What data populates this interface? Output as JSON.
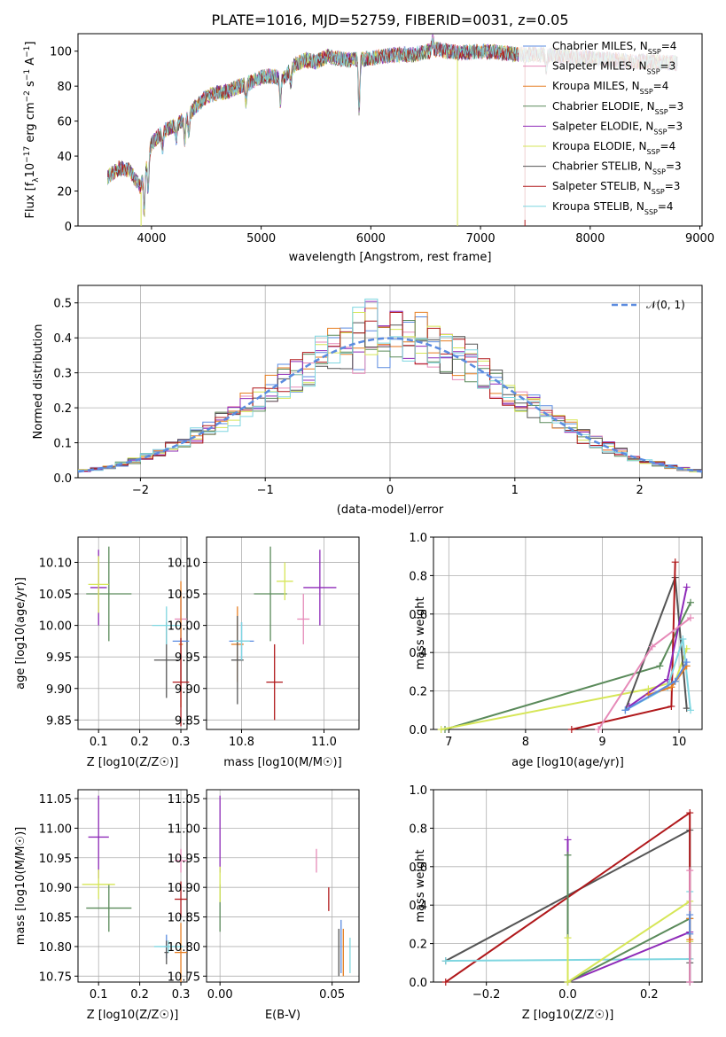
{
  "colors": {
    "Chabrier MILES": "#5b8be0",
    "Salpeter MILES": "#e68ab8",
    "Kroupa MILES": "#e67e22",
    "Chabrier ELODIE": "#5a8a5a",
    "Salpeter ELODIE": "#8e2ab8",
    "Kroupa ELODIE": "#d6e657",
    "Chabrier STELIB": "#555555",
    "Salpeter STELIB": "#b0181b",
    "Kroupa STELIB": "#7fd6e0"
  },
  "chart_data": [
    {
      "id": "spectrum",
      "type": "line",
      "title": "PLATE=1016, MJD=52759, FIBERID=0031, z=0.05",
      "xlabel": "wavelength [Angstrom, rest frame]",
      "ylabel": "Flux [f_λ10^-17 erg cm^-2 s^-1 A^-1]",
      "xlim": [
        3330,
        9020
      ],
      "ylim": [
        0,
        110
      ],
      "xticks": [
        "4000",
        "5000",
        "6000",
        "7000",
        "8000",
        "9000"
      ],
      "yticks": [
        "0",
        "20",
        "40",
        "60",
        "80",
        "100"
      ],
      "grid": false,
      "legend_position": "top-right",
      "series": [
        {
          "name": "Chabrier MILES, N_SSP=4",
          "key": "Chabrier MILES"
        },
        {
          "name": "Salpeter MILES, N_SSP=3",
          "key": "Salpeter MILES"
        },
        {
          "name": "Kroupa MILES, N_SSP=4",
          "key": "Kroupa MILES"
        },
        {
          "name": "Chabrier ELODIE, N_SSP=3",
          "key": "Chabrier ELODIE"
        },
        {
          "name": "Salpeter ELODIE, N_SSP=3",
          "key": "Salpeter ELODIE"
        },
        {
          "name": "Kroupa ELODIE, N_SSP=4",
          "key": "Kroupa ELODIE"
        },
        {
          "name": "Chabrier STELIB, N_SSP=3",
          "key": "Chabrier STELIB"
        },
        {
          "name": "Salpeter STELIB, N_SSP=3",
          "key": "Salpeter STELIB"
        },
        {
          "name": "Kroupa STELIB, N_SSP=4",
          "key": "Kroupa STELIB"
        }
      ],
      "continuum": {
        "x": [
          3600,
          3700,
          3800,
          3900,
          4000,
          4100,
          4200,
          4300,
          4400,
          4500,
          4600,
          4700,
          4800,
          4900,
          5000,
          5100,
          5200,
          5300,
          5400,
          5500,
          5600,
          5800,
          6000,
          6200,
          6400,
          6600,
          6800,
          7000,
          7200,
          7400,
          7600,
          7800,
          8000,
          8200,
          8400,
          8600,
          8800
        ],
        "y": [
          28,
          33,
          32,
          22,
          47,
          54,
          57,
          61,
          68,
          74,
          76,
          77,
          80,
          82,
          85,
          86,
          84,
          92,
          95,
          94,
          97,
          95,
          96,
          98,
          98,
          101,
          99,
          100,
          99,
          98,
          98,
          97,
          96,
          95,
          94,
          94,
          93
        ]
      }
    },
    {
      "id": "residuals",
      "type": "histogram",
      "xlabel": "(data-model)/error",
      "ylabel": "Normed distribution",
      "xlim": [
        -2.5,
        2.5
      ],
      "ylim": [
        0,
        0.55
      ],
      "xticks": [
        "−2",
        "−1",
        "0",
        "1",
        "2"
      ],
      "yticks": [
        "0.0",
        "0.1",
        "0.2",
        "0.3",
        "0.4",
        "0.5"
      ],
      "grid": true,
      "legend_position": "top-right",
      "reference_curve": {
        "name": "𝒩(0, 1)",
        "mean": 0,
        "sigma": 1
      }
    },
    {
      "id": "age-vs-Z",
      "type": "scatter",
      "xlabel": "Z [log10(Z/Z☉)]",
      "ylabel": "age  [log10(age/yr)]",
      "xlim": [
        0.05,
        0.315
      ],
      "ylim": [
        9.835,
        10.14
      ],
      "xticks": [
        "0.1",
        "0.2",
        "0.3"
      ],
      "yticks": [
        "9.85",
        "9.90",
        "9.95",
        "10.00",
        "10.05",
        "10.10"
      ],
      "grid": true,
      "points": [
        {
          "key": "Chabrier MILES",
          "x": 0.3,
          "y": 9.975,
          "xerr": 0.02,
          "yerr": 0.08
        },
        {
          "key": "Salpeter MILES",
          "x": 0.3,
          "y": 10.01,
          "xerr": 0.015,
          "yerr": 0.03
        },
        {
          "key": "Kroupa MILES",
          "x": 0.3,
          "y": 9.97,
          "xerr": 0.005,
          "yerr": 0.1
        },
        {
          "key": "Chabrier ELODIE",
          "x": 0.125,
          "y": 10.05,
          "xerr": 0.055,
          "yerr": 0.075
        },
        {
          "key": "Salpeter ELODIE",
          "x": 0.1,
          "y": 10.06,
          "xerr": 0.02,
          "yerr": 0.06
        },
        {
          "key": "Kroupa ELODIE",
          "x": 0.1,
          "y": 10.065,
          "xerr": 0.025,
          "yerr": 0.045
        },
        {
          "key": "Chabrier STELIB",
          "x": 0.265,
          "y": 9.945,
          "xerr": 0.03,
          "yerr": 0.06
        },
        {
          "key": "Salpeter STELIB",
          "x": 0.3,
          "y": 9.91,
          "xerr": 0.02,
          "yerr": 0.07
        },
        {
          "key": "Kroupa STELIB",
          "x": 0.265,
          "y": 10.0,
          "xerr": 0.035,
          "yerr": 0.03
        }
      ]
    },
    {
      "id": "age-vs-mass",
      "type": "scatter",
      "xlabel": "mass [log10(M/M☉)]",
      "ylabel": "",
      "xlim": [
        10.715,
        11.085
      ],
      "ylim": [
        9.835,
        10.14
      ],
      "xticks": [
        "10.8",
        "11.0"
      ],
      "yticks": [
        "9.85",
        "9.90",
        "9.95",
        "10.00",
        "10.05",
        "10.10"
      ],
      "grid": true,
      "points": [
        {
          "key": "Chabrier MILES",
          "x": 10.8,
          "y": 9.975,
          "xerr": 0.03,
          "yerr": 0.03
        },
        {
          "key": "Salpeter MILES",
          "x": 10.95,
          "y": 10.01,
          "xerr": 0.015,
          "yerr": 0.04
        },
        {
          "key": "Kroupa MILES",
          "x": 10.79,
          "y": 9.97,
          "xerr": 0.015,
          "yerr": 0.06
        },
        {
          "key": "Chabrier ELODIE",
          "x": 10.87,
          "y": 10.05,
          "xerr": 0.04,
          "yerr": 0.075
        },
        {
          "key": "Salpeter ELODIE",
          "x": 10.99,
          "y": 10.06,
          "xerr": 0.04,
          "yerr": 0.06
        },
        {
          "key": "Kroupa ELODIE",
          "x": 10.905,
          "y": 10.07,
          "xerr": 0.02,
          "yerr": 0.03
        },
        {
          "key": "Chabrier STELIB",
          "x": 10.79,
          "y": 9.945,
          "xerr": 0.015,
          "yerr": 0.07
        },
        {
          "key": "Salpeter STELIB",
          "x": 10.88,
          "y": 9.91,
          "xerr": 0.02,
          "yerr": 0.06
        },
        {
          "key": "Kroupa STELIB",
          "x": 10.8,
          "y": 9.975,
          "xerr": 0.02,
          "yerr": 0.03
        }
      ]
    },
    {
      "id": "weight-vs-age",
      "type": "line",
      "xlabel": "age  [log10(age/yr)]",
      "ylabel": "mass weight",
      "xlim": [
        6.8,
        10.3
      ],
      "ylim": [
        0,
        1.0
      ],
      "xticks": [
        "7",
        "8",
        "9",
        "10"
      ],
      "yticks": [
        "0.0",
        "0.2",
        "0.4",
        "0.6",
        "0.8",
        "1.0"
      ],
      "grid": true,
      "series": [
        {
          "key": "Chabrier ELODIE",
          "x": [
            6.95,
            9.75,
            10.15
          ],
          "y": [
            0.0,
            0.33,
            0.66
          ]
        },
        {
          "key": "Kroupa ELODIE",
          "x": [
            6.9,
            9.6,
            9.95,
            10.1
          ],
          "y": [
            0.0,
            0.21,
            0.25,
            0.42
          ]
        },
        {
          "key": "Chabrier STELIB",
          "x": [
            9.3,
            9.95,
            10.1
          ],
          "y": [
            0.1,
            0.79,
            0.11
          ]
        },
        {
          "key": "Salpeter STELIB",
          "x": [
            8.6,
            9.9,
            9.95
          ],
          "y": [
            0.0,
            0.12,
            0.87
          ]
        },
        {
          "key": "Salpeter ELODIE",
          "x": [
            9.35,
            9.85,
            10.1
          ],
          "y": [
            0.12,
            0.26,
            0.74
          ]
        },
        {
          "key": "Salpeter MILES",
          "x": [
            8.95,
            9.65,
            10.15
          ],
          "y": [
            0.0,
            0.43,
            0.58
          ]
        },
        {
          "key": "Kroupa STELIB",
          "x": [
            9.3,
            9.85,
            10.05,
            10.15
          ],
          "y": [
            0.1,
            0.22,
            0.47,
            0.1
          ]
        },
        {
          "key": "Kroupa MILES",
          "x": [
            9.6,
            9.9,
            10.1
          ],
          "y": [
            0.18,
            0.22,
            0.33
          ]
        },
        {
          "key": "Chabrier MILES",
          "x": [
            9.3,
            9.95,
            10.1
          ],
          "y": [
            0.1,
            0.25,
            0.35
          ]
        }
      ]
    },
    {
      "id": "mass-vs-Z",
      "type": "scatter",
      "xlabel": "Z [log10(Z/Z☉)]",
      "ylabel": "mass [log10(M/M☉)]",
      "xlim": [
        0.05,
        0.315
      ],
      "ylim": [
        10.74,
        11.065
      ],
      "xticks": [
        "0.1",
        "0.2",
        "0.3"
      ],
      "yticks": [
        "10.75",
        "10.80",
        "10.85",
        "10.90",
        "10.95",
        "11.00",
        "11.05"
      ],
      "grid": true,
      "points": [
        {
          "key": "Chabrier MILES",
          "x": 0.265,
          "y": 10.8,
          "xerr": 0.005,
          "yerr": 0.02
        },
        {
          "key": "Salpeter MILES",
          "x": 0.3,
          "y": 10.945,
          "xerr": 0.015,
          "yerr": 0.02
        },
        {
          "key": "Kroupa MILES",
          "x": 0.3,
          "y": 10.79,
          "xerr": 0.015,
          "yerr": 0.05
        },
        {
          "key": "Chabrier ELODIE",
          "x": 0.125,
          "y": 10.865,
          "xerr": 0.055,
          "yerr": 0.04
        },
        {
          "key": "Salpeter ELODIE",
          "x": 0.1,
          "y": 10.985,
          "xerr": 0.025,
          "yerr": 0.07
        },
        {
          "key": "Kroupa ELODIE",
          "x": 0.1,
          "y": 10.905,
          "xerr": 0.04,
          "yerr": 0.025
        },
        {
          "key": "Chabrier STELIB",
          "x": 0.265,
          "y": 10.79,
          "xerr": 0.005,
          "yerr": 0.02
        },
        {
          "key": "Salpeter STELIB",
          "x": 0.3,
          "y": 10.88,
          "xerr": 0.015,
          "yerr": 0.03
        },
        {
          "key": "Kroupa STELIB",
          "x": 0.27,
          "y": 10.8,
          "xerr": 0.035,
          "yerr": 0.01
        }
      ]
    },
    {
      "id": "mass-vs-ebv",
      "type": "scatter",
      "xlabel": "E(B-V)",
      "ylabel": "",
      "xlim": [
        -0.006,
        0.062
      ],
      "ylim": [
        10.74,
        11.065
      ],
      "xticks": [
        "0.00",
        "0.05"
      ],
      "yticks": [
        "10.75",
        "10.80",
        "10.85",
        "10.90",
        "10.95",
        "11.00",
        "11.05"
      ],
      "grid": true,
      "points": [
        {
          "key": "Chabrier MILES",
          "x": 0.054,
          "y": 10.8,
          "xerr": 0,
          "yerr": 0.045
        },
        {
          "key": "Salpeter MILES",
          "x": 0.043,
          "y": 10.945,
          "xerr": 0,
          "yerr": 0.02
        },
        {
          "key": "Kroupa MILES",
          "x": 0.055,
          "y": 10.79,
          "xerr": 0,
          "yerr": 0.04
        },
        {
          "key": "Chabrier ELODIE",
          "x": 0.0,
          "y": 10.865,
          "xerr": 0,
          "yerr": 0.04
        },
        {
          "key": "Salpeter ELODIE",
          "x": 0.0,
          "y": 10.99,
          "xerr": 0,
          "yerr": 0.065
        },
        {
          "key": "Kroupa ELODIE",
          "x": 0.0,
          "y": 10.905,
          "xerr": 0,
          "yerr": 0.03
        },
        {
          "key": "Chabrier STELIB",
          "x": 0.053,
          "y": 10.79,
          "xerr": 0,
          "yerr": 0.04
        },
        {
          "key": "Salpeter STELIB",
          "x": 0.0485,
          "y": 10.88,
          "xerr": 0,
          "yerr": 0.02
        },
        {
          "key": "Kroupa STELIB",
          "x": 0.058,
          "y": 10.785,
          "xerr": 0,
          "yerr": 0.03
        }
      ]
    },
    {
      "id": "weight-vs-Z",
      "type": "line",
      "xlabel": "Z [log10(Z/Z☉)]",
      "ylabel": "mass weight",
      "xlim": [
        -0.33,
        0.33
      ],
      "ylim": [
        0,
        1.0
      ],
      "xticks": [
        "−0.2",
        "0.0",
        "0.2"
      ],
      "yticks": [
        "0.0",
        "0.2",
        "0.4",
        "0.6",
        "0.8",
        "1.0"
      ],
      "grid": true,
      "series": [
        {
          "key": "Chabrier STELIB",
          "x": [
            -0.3,
            0.3,
            0.3
          ],
          "y": [
            0.11,
            0.79,
            0.1
          ]
        },
        {
          "key": "Salpeter STELIB",
          "x": [
            -0.3,
            0.3,
            0.3
          ],
          "y": [
            0.0,
            0.88,
            0.12
          ]
        },
        {
          "key": "Kroupa STELIB",
          "x": [
            -0.3,
            0.3,
            0.3
          ],
          "y": [
            0.11,
            0.12,
            0.47
          ]
        },
        {
          "key": "Salpeter ELODIE",
          "x": [
            0.0,
            0.0,
            0.3,
            0.3
          ],
          "y": [
            0.74,
            0.0,
            0.26,
            0.0
          ]
        },
        {
          "key": "Chabrier ELODIE",
          "x": [
            0.0,
            0.0,
            0.3,
            0.3
          ],
          "y": [
            0.66,
            0.0,
            0.33,
            0.0
          ]
        },
        {
          "key": "Kroupa ELODIE",
          "x": [
            0.0,
            0.0,
            0.3,
            0.3
          ],
          "y": [
            0.23,
            0.0,
            0.42,
            0.21
          ]
        },
        {
          "key": "Salpeter MILES",
          "x": [
            0.3,
            0.3
          ],
          "y": [
            0.0,
            0.58
          ]
        },
        {
          "key": "Kroupa MILES",
          "x": [
            0.3,
            0.3
          ],
          "y": [
            0.22,
            0.33
          ]
        },
        {
          "key": "Chabrier MILES",
          "x": [
            0.3,
            0.3
          ],
          "y": [
            0.25,
            0.35
          ]
        }
      ]
    }
  ]
}
